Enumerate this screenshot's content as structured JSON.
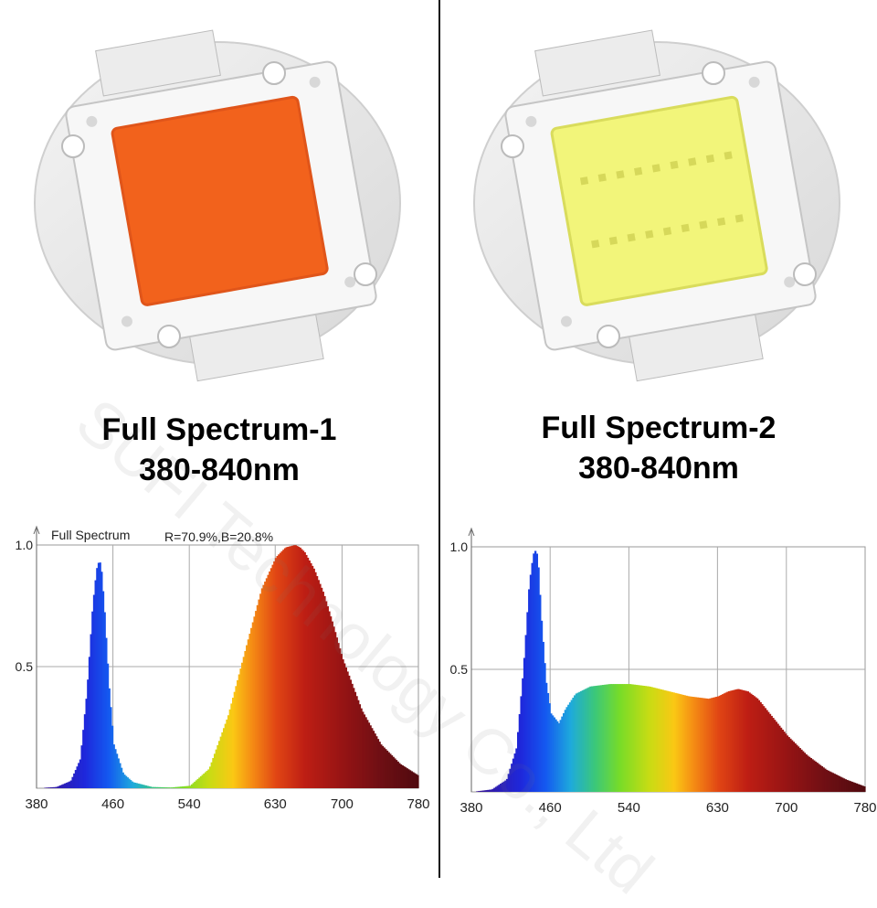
{
  "panels": [
    {
      "title_line1": "Full Spectrum-1",
      "title_line2": "380-840nm",
      "chip_color": "#f2621c",
      "chart_label": "Full Spectrum",
      "chart_ratio": "R=70.9%,B=20.8%"
    },
    {
      "title_line1": "Full Spectrum-2",
      "title_line2": "380-840nm",
      "chip_color": "#f2f57a",
      "chart_label": "",
      "chart_ratio": ""
    }
  ],
  "watermark": "SUFI Technology Co., Ltd",
  "chart_data": [
    {
      "type": "area",
      "title": "Full Spectrum",
      "subtitle": "R=70.9%,B=20.8%",
      "xlabel": "",
      "ylabel": "",
      "x_ticks": [
        380,
        460,
        540,
        630,
        700,
        780
      ],
      "y_ticks": [
        "1.0",
        "0.5"
      ],
      "xlim": [
        380,
        780
      ],
      "ylim": [
        0,
        1.0
      ],
      "series": [
        {
          "name": "Full Spectrum-1",
          "x": [
            380,
            400,
            415,
            425,
            432,
            438,
            442,
            445,
            447,
            450,
            455,
            460,
            470,
            480,
            500,
            520,
            540,
            560,
            580,
            600,
            615,
            630,
            640,
            650,
            655,
            660,
            670,
            680,
            690,
            700,
            720,
            740,
            760,
            780
          ],
          "y": [
            0,
            0.005,
            0.03,
            0.12,
            0.4,
            0.75,
            0.9,
            0.94,
            0.9,
            0.75,
            0.42,
            0.18,
            0.06,
            0.025,
            0.005,
            0.003,
            0.01,
            0.08,
            0.3,
            0.6,
            0.82,
            0.95,
            0.99,
            1.0,
            0.99,
            0.97,
            0.9,
            0.8,
            0.67,
            0.53,
            0.32,
            0.18,
            0.1,
            0.05
          ]
        }
      ]
    },
    {
      "type": "area",
      "title": "",
      "xlabel": "",
      "ylabel": "",
      "x_ticks": [
        380,
        460,
        540,
        630,
        700,
        780
      ],
      "y_ticks": [
        "1.0",
        "0.5"
      ],
      "xlim": [
        380,
        780
      ],
      "ylim": [
        0,
        1.0
      ],
      "series": [
        {
          "name": "Full Spectrum-2",
          "x": [
            380,
            400,
            415,
            425,
            432,
            438,
            442,
            445,
            447,
            450,
            455,
            460,
            468,
            475,
            485,
            500,
            520,
            540,
            560,
            580,
            600,
            620,
            630,
            640,
            650,
            660,
            670,
            680,
            690,
            700,
            720,
            740,
            760,
            780
          ],
          "y": [
            0,
            0.01,
            0.05,
            0.18,
            0.5,
            0.85,
            0.97,
            0.99,
            0.93,
            0.72,
            0.45,
            0.32,
            0.28,
            0.34,
            0.4,
            0.43,
            0.44,
            0.44,
            0.43,
            0.41,
            0.39,
            0.38,
            0.39,
            0.41,
            0.42,
            0.41,
            0.38,
            0.33,
            0.28,
            0.23,
            0.15,
            0.09,
            0.05,
            0.02
          ]
        }
      ]
    }
  ]
}
